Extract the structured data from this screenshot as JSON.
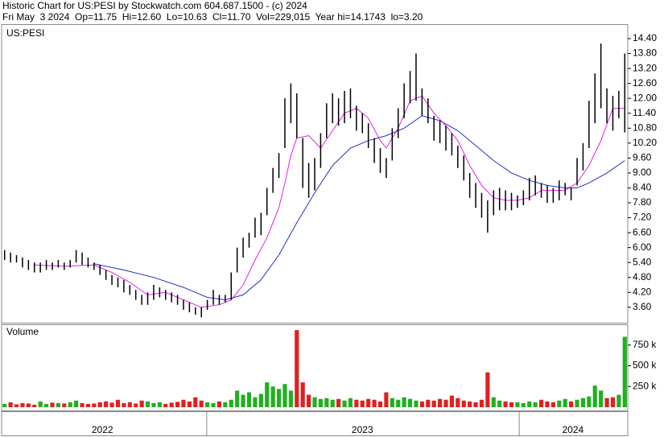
{
  "chart_data": {
    "type": "stock",
    "title": "Historic Chart for US:PESI by Stockwatch.com 604.687.1500 - (c) 2024",
    "subtitle": "Fri May  3 2024  Op=11.75  Hi=12.60  Lo=10.63  Cl=11.70  Vol=229,015  Year hi=14.1743  lo=3.20",
    "symbol_label": "US:PESI",
    "volume_label": "Volume",
    "xlim": [
      -0.5,
      104.5
    ],
    "xticks": [
      33.9,
      86.3
    ],
    "year_labels": [
      {
        "value": 16.4,
        "label": "2022"
      },
      {
        "value": 60,
        "label": "2023"
      },
      {
        "value": 95.3,
        "label": "2024"
      }
    ],
    "ylim": [
      2.98,
      14.95
    ],
    "yticks": [
      {
        "value": 3.6,
        "label": "3.60"
      },
      {
        "value": 4.2,
        "label": "4.20"
      },
      {
        "value": 4.8,
        "label": "4.80"
      },
      {
        "value": 5.4,
        "label": "5.40"
      },
      {
        "value": 6,
        "label": "6.00"
      },
      {
        "value": 6.6,
        "label": "6.60"
      },
      {
        "value": 7.2,
        "label": "7.20"
      },
      {
        "value": 7.8,
        "label": "7.80"
      },
      {
        "value": 8.4,
        "label": "8.40"
      },
      {
        "value": 9,
        "label": "9.00"
      },
      {
        "value": 9.6,
        "label": "9.60"
      },
      {
        "value": 10.2,
        "label": "10.20"
      },
      {
        "value": 10.8,
        "label": "10.80"
      },
      {
        "value": 11.4,
        "label": "11.40"
      },
      {
        "value": 12,
        "label": "12.00"
      },
      {
        "value": 12.6,
        "label": "12.60"
      },
      {
        "value": 13.2,
        "label": "13.20"
      },
      {
        "value": 13.8,
        "label": "13.80"
      },
      {
        "value": 14.4,
        "label": "14.40"
      }
    ],
    "bar_color": "#000000",
    "high": [
      5.9,
      5.8,
      5.7,
      5.6,
      5.5,
      5.4,
      5.4,
      5.5,
      5.4,
      5.5,
      5.4,
      5.5,
      5.9,
      5.8,
      5.6,
      5.4,
      5.3,
      5.1,
      4.9,
      4.8,
      4.7,
      4.5,
      4.3,
      4.1,
      4.2,
      4.5,
      4.4,
      4.3,
      4.2,
      4.1,
      3.9,
      3.8,
      3.6,
      3.6,
      3.9,
      4.3,
      4.1,
      4.1,
      5.0,
      6.0,
      6.4,
      6.6,
      7.2,
      7.4,
      8.4,
      9.2,
      9.8,
      12.0,
      12.6,
      12.2,
      10.4,
      9.4,
      9.6,
      10.6,
      11.8,
      12.2,
      12.0,
      12.3,
      12.4,
      11.7,
      11.4,
      11.0,
      10.4,
      10.0,
      9.6,
      10.8,
      11.6,
      12.6,
      13.1,
      13.8,
      12.4,
      12.0,
      11.3,
      11.1,
      10.9,
      10.6,
      10.1,
      9.7,
      9.0,
      8.6,
      8.2,
      7.9,
      8.3,
      8.4,
      8.3,
      8.2,
      8.1,
      8.3,
      8.8,
      8.9,
      8.6,
      8.5,
      8.4,
      8.7,
      8.6,
      8.4,
      9.6,
      10.2,
      11.9,
      13.0,
      14.2,
      12.4,
      12.1,
      12.3,
      13.8
    ],
    "low": [
      5.5,
      5.4,
      5.4,
      5.2,
      5.1,
      5.0,
      5.0,
      5.1,
      5.1,
      5.2,
      5.1,
      5.2,
      5.4,
      5.3,
      5.2,
      5.1,
      4.9,
      4.7,
      4.5,
      4.4,
      4.2,
      4.1,
      3.9,
      3.7,
      3.7,
      3.9,
      4.0,
      3.9,
      3.8,
      3.7,
      3.5,
      3.4,
      3.3,
      3.2,
      3.5,
      3.7,
      3.7,
      3.8,
      3.9,
      5.0,
      5.6,
      6.0,
      6.4,
      6.5,
      7.3,
      8.2,
      8.8,
      10.0,
      11.0,
      10.4,
      8.4,
      8.0,
      8.3,
      9.2,
      10.4,
      11.0,
      10.9,
      11.0,
      11.2,
      10.7,
      10.6,
      10.0,
      9.4,
      9.0,
      8.8,
      9.5,
      10.4,
      11.2,
      11.8,
      11.9,
      11.3,
      11.0,
      10.3,
      10.2,
      9.9,
      9.7,
      9.2,
      8.7,
      8.0,
      7.6,
      7.2,
      6.6,
      7.3,
      7.5,
      7.5,
      7.5,
      7.6,
      7.7,
      7.9,
      8.1,
      8.0,
      7.8,
      7.8,
      7.9,
      8.1,
      7.9,
      8.5,
      9.1,
      10.0,
      11.0,
      11.6,
      11.0,
      10.7,
      11.2,
      10.63
    ],
    "series": [
      {
        "color": "#e020e0",
        "x": [
          5,
          10,
          15,
          18,
          21,
          24,
          27,
          30,
          33,
          36,
          38,
          40,
          42,
          44,
          46,
          47,
          48,
          49,
          51,
          53,
          55,
          57,
          59,
          61,
          63,
          64,
          66,
          68,
          70,
          72,
          74,
          76,
          78,
          80,
          82,
          84,
          86,
          88,
          90,
          92,
          94,
          96,
          98,
          100,
          102,
          104
        ],
        "values": [
          5.3,
          5.25,
          5.3,
          5.0,
          4.6,
          4.1,
          4.2,
          3.9,
          3.6,
          3.7,
          3.9,
          4.5,
          5.5,
          6.4,
          7.6,
          8.6,
          9.7,
          10.4,
          10.5,
          10.0,
          10.7,
          11.4,
          11.6,
          11.2,
          10.3,
          10.0,
          10.8,
          11.9,
          12.1,
          11.4,
          10.9,
          10.3,
          9.3,
          8.5,
          8.0,
          7.9,
          7.9,
          8.0,
          8.3,
          8.3,
          8.3,
          8.6,
          9.3,
          10.3,
          11.6,
          11.6
        ]
      },
      {
        "color": "#2030c0",
        "x": [
          15,
          20,
          25,
          30,
          34,
          37,
          40,
          43,
          46,
          49,
          52,
          55,
          58,
          61,
          64,
          67,
          70,
          73,
          76,
          79,
          82,
          85,
          88,
          91,
          94,
          96,
          98,
          101,
          104
        ],
        "values": [
          5.35,
          5.1,
          4.8,
          4.4,
          4.0,
          3.9,
          4.1,
          4.7,
          5.7,
          7.0,
          8.2,
          9.3,
          10.0,
          10.3,
          10.5,
          10.8,
          11.3,
          11.1,
          10.7,
          10.1,
          9.5,
          9.0,
          8.7,
          8.5,
          8.4,
          8.4,
          8.6,
          9.0,
          9.5
        ]
      }
    ],
    "volume": {
      "ylim": [
        0,
        990000
      ],
      "yticks": [
        {
          "value": 250000,
          "label": "250 k"
        },
        {
          "value": 500000,
          "label": "500 k"
        },
        {
          "value": 750000,
          "label": "750 k"
        }
      ],
      "up_color": "#20b020",
      "down_color": "#e02020",
      "values": [
        40000,
        60000,
        35000,
        50000,
        45000,
        30000,
        70000,
        40000,
        55000,
        50000,
        45000,
        60000,
        80000,
        50000,
        40000,
        45000,
        60000,
        70000,
        55000,
        90000,
        50000,
        60000,
        45000,
        80000,
        70000,
        50000,
        60000,
        40000,
        55000,
        65000,
        90000,
        70000,
        120000,
        80000,
        60000,
        50000,
        70000,
        60000,
        90000,
        200000,
        150000,
        180000,
        120000,
        160000,
        300000,
        250000,
        220000,
        280000,
        200000,
        930000,
        300000,
        150000,
        120000,
        100000,
        110000,
        90000,
        100000,
        80000,
        110000,
        90000,
        80000,
        100000,
        90000,
        70000,
        180000,
        110000,
        90000,
        120000,
        100000,
        80000,
        70000,
        90000,
        80000,
        100000,
        90000,
        140000,
        110000,
        80000,
        70000,
        60000,
        90000,
        420000,
        120000,
        80000,
        70000,
        60000,
        60000,
        50000,
        70000,
        60000,
        90000,
        70000,
        60000,
        80000,
        100000,
        70000,
        90000,
        110000,
        130000,
        260000,
        200000,
        110000,
        120000,
        150000,
        850000
      ]
    }
  }
}
